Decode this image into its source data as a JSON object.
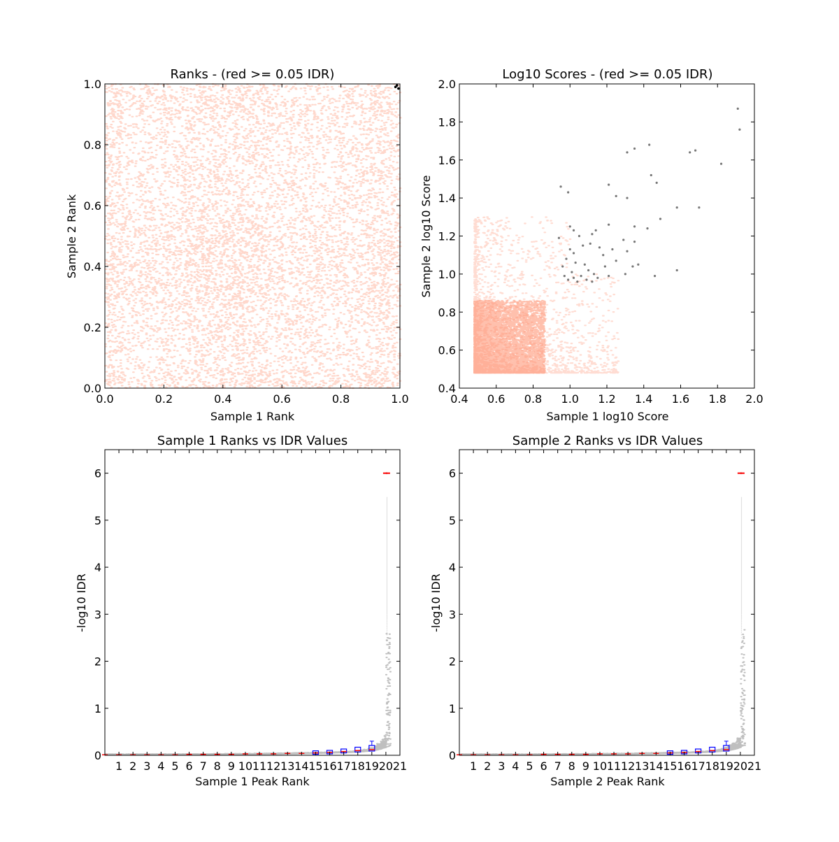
{
  "colors": {
    "above_threshold": "#ff8c69",
    "below_threshold": "#000000",
    "boxplot": "#0000ff",
    "median": "#ff0000"
  },
  "chart_data": [
    {
      "type": "scatter",
      "title": "Ranks - (red >= 0.05 IDR)",
      "xlabel": "Sample 1 Rank",
      "ylabel": "Sample 2 Rank",
      "xlim": [
        0.0,
        1.0
      ],
      "ylim": [
        0.0,
        1.0
      ],
      "xticks": [
        "0.0",
        "0.2",
        "0.4",
        "0.6",
        "0.8",
        "1.0"
      ],
      "yticks": [
        "0.0",
        "0.2",
        "0.4",
        "0.6",
        "0.8",
        "1.0"
      ],
      "grid": false,
      "series": [
        {
          "color": "#ff8c69",
          "description_points": "dense uniform cloud covering [0,1]x[0,1] with block structure"
        },
        {
          "color": "#000000",
          "points": [
            [
              0.99,
              0.995
            ],
            [
              0.985,
              0.99
            ],
            [
              0.995,
              0.985
            ]
          ]
        }
      ]
    },
    {
      "type": "scatter",
      "title": "Log10 Scores - (red >= 0.05 IDR)",
      "xlabel": "Sample 1 log10 Score",
      "ylabel": "Sample 2 log10 Score",
      "xlim": [
        0.4,
        2.0
      ],
      "ylim": [
        0.4,
        2.0
      ],
      "xticks": [
        "0.4",
        "0.6",
        "0.8",
        "1.0",
        "1.2",
        "1.4",
        "1.6",
        "1.8",
        "2.0"
      ],
      "yticks": [
        "0.4",
        "0.6",
        "0.8",
        "1.0",
        "1.2",
        "1.4",
        "1.6",
        "1.8",
        "2.0"
      ],
      "grid": false,
      "series": [
        {
          "color": "#ff8c69",
          "description_points": "dense block 0.48-0.86 x 0.48-0.86, sparser to ~1.25 x ~1.3"
        },
        {
          "color": "#000000",
          "points": [
            [
              1.91,
              1.87
            ],
            [
              1.92,
              1.76
            ],
            [
              1.43,
              1.68
            ],
            [
              1.35,
              1.66
            ],
            [
              1.31,
              1.64
            ],
            [
              1.65,
              1.64
            ],
            [
              1.68,
              1.65
            ],
            [
              1.82,
              1.58
            ],
            [
              1.44,
              1.52
            ],
            [
              1.47,
              1.48
            ],
            [
              1.21,
              1.47
            ],
            [
              0.95,
              1.46
            ],
            [
              0.99,
              1.43
            ],
            [
              1.25,
              1.41
            ],
            [
              1.31,
              1.4
            ],
            [
              1.58,
              1.35
            ],
            [
              1.7,
              1.35
            ],
            [
              1.49,
              1.29
            ],
            [
              1.42,
              1.24
            ],
            [
              1.21,
              1.26
            ],
            [
              1.35,
              1.25
            ],
            [
              1.0,
              1.25
            ],
            [
              1.02,
              1.23
            ],
            [
              1.14,
              1.23
            ],
            [
              1.12,
              1.21
            ],
            [
              1.05,
              1.2
            ],
            [
              0.94,
              1.19
            ],
            [
              1.29,
              1.18
            ],
            [
              1.35,
              1.17
            ],
            [
              1.11,
              1.16
            ],
            [
              1.07,
              1.15
            ],
            [
              1.23,
              1.13
            ],
            [
              1.16,
              1.14
            ],
            [
              1.0,
              1.13
            ],
            [
              1.31,
              1.12
            ],
            [
              1.02,
              1.11
            ],
            [
              1.18,
              1.1
            ],
            [
              0.98,
              1.08
            ],
            [
              1.03,
              1.06
            ],
            [
              1.25,
              1.07
            ],
            [
              1.37,
              1.05
            ],
            [
              1.34,
              1.04
            ],
            [
              0.96,
              1.04
            ],
            [
              1.1,
              1.02
            ],
            [
              1.58,
              1.02
            ],
            [
              1.01,
              1.01
            ],
            [
              1.3,
              1.0
            ],
            [
              1.06,
              0.99
            ],
            [
              1.46,
              0.99
            ],
            [
              1.15,
              0.98
            ],
            [
              1.09,
              0.97
            ],
            [
              1.04,
              0.96
            ],
            [
              1.12,
              0.96
            ],
            [
              0.99,
              0.97
            ],
            [
              1.21,
              0.99
            ],
            [
              1.08,
              1.05
            ],
            [
              0.97,
              0.99
            ],
            [
              1.13,
              1.0
            ],
            [
              1.02,
              0.98
            ],
            [
              1.19,
              1.04
            ]
          ]
        }
      ]
    },
    {
      "type": "scatter",
      "title": "Sample 1 Ranks vs IDR Values",
      "xlabel": "Sample 1 Peak Rank",
      "ylabel": "-log10 IDR",
      "xlim": [
        0,
        21
      ],
      "ylim": [
        0,
        6.5
      ],
      "xticks": [
        "1",
        "2",
        "3",
        "4",
        "5",
        "6",
        "7",
        "8",
        "9",
        "10",
        "11",
        "12",
        "13",
        "14",
        "15",
        "16",
        "17",
        "18",
        "19",
        "20",
        "21"
      ],
      "yticks": [
        "0",
        "1",
        "2",
        "3",
        "4",
        "5",
        "6"
      ],
      "grid": false,
      "boxplot_medians": [
        0.01,
        0.01,
        0.01,
        0.01,
        0.01,
        0.01,
        0.02,
        0.02,
        0.02,
        0.02,
        0.03,
        0.03,
        0.03,
        0.04,
        0.04,
        0.05,
        0.06,
        0.08,
        0.1,
        0.12,
        6.0
      ]
    },
    {
      "type": "scatter",
      "title": "Sample 2 Ranks vs IDR Values",
      "xlabel": "Sample 2 Peak Rank",
      "ylabel": "-log10 IDR",
      "xlim": [
        0,
        21
      ],
      "ylim": [
        0,
        6.5
      ],
      "xticks": [
        "1",
        "2",
        "3",
        "4",
        "5",
        "6",
        "7",
        "8",
        "9",
        "10",
        "11",
        "12",
        "13",
        "14",
        "15",
        "16",
        "17",
        "18",
        "19",
        "20",
        "21"
      ],
      "yticks": [
        "0",
        "1",
        "2",
        "3",
        "4",
        "5",
        "6"
      ],
      "grid": false,
      "boxplot_medians": [
        0.01,
        0.01,
        0.01,
        0.01,
        0.01,
        0.01,
        0.02,
        0.02,
        0.02,
        0.02,
        0.03,
        0.03,
        0.03,
        0.04,
        0.04,
        0.05,
        0.06,
        0.08,
        0.1,
        0.12,
        6.0
      ]
    }
  ]
}
